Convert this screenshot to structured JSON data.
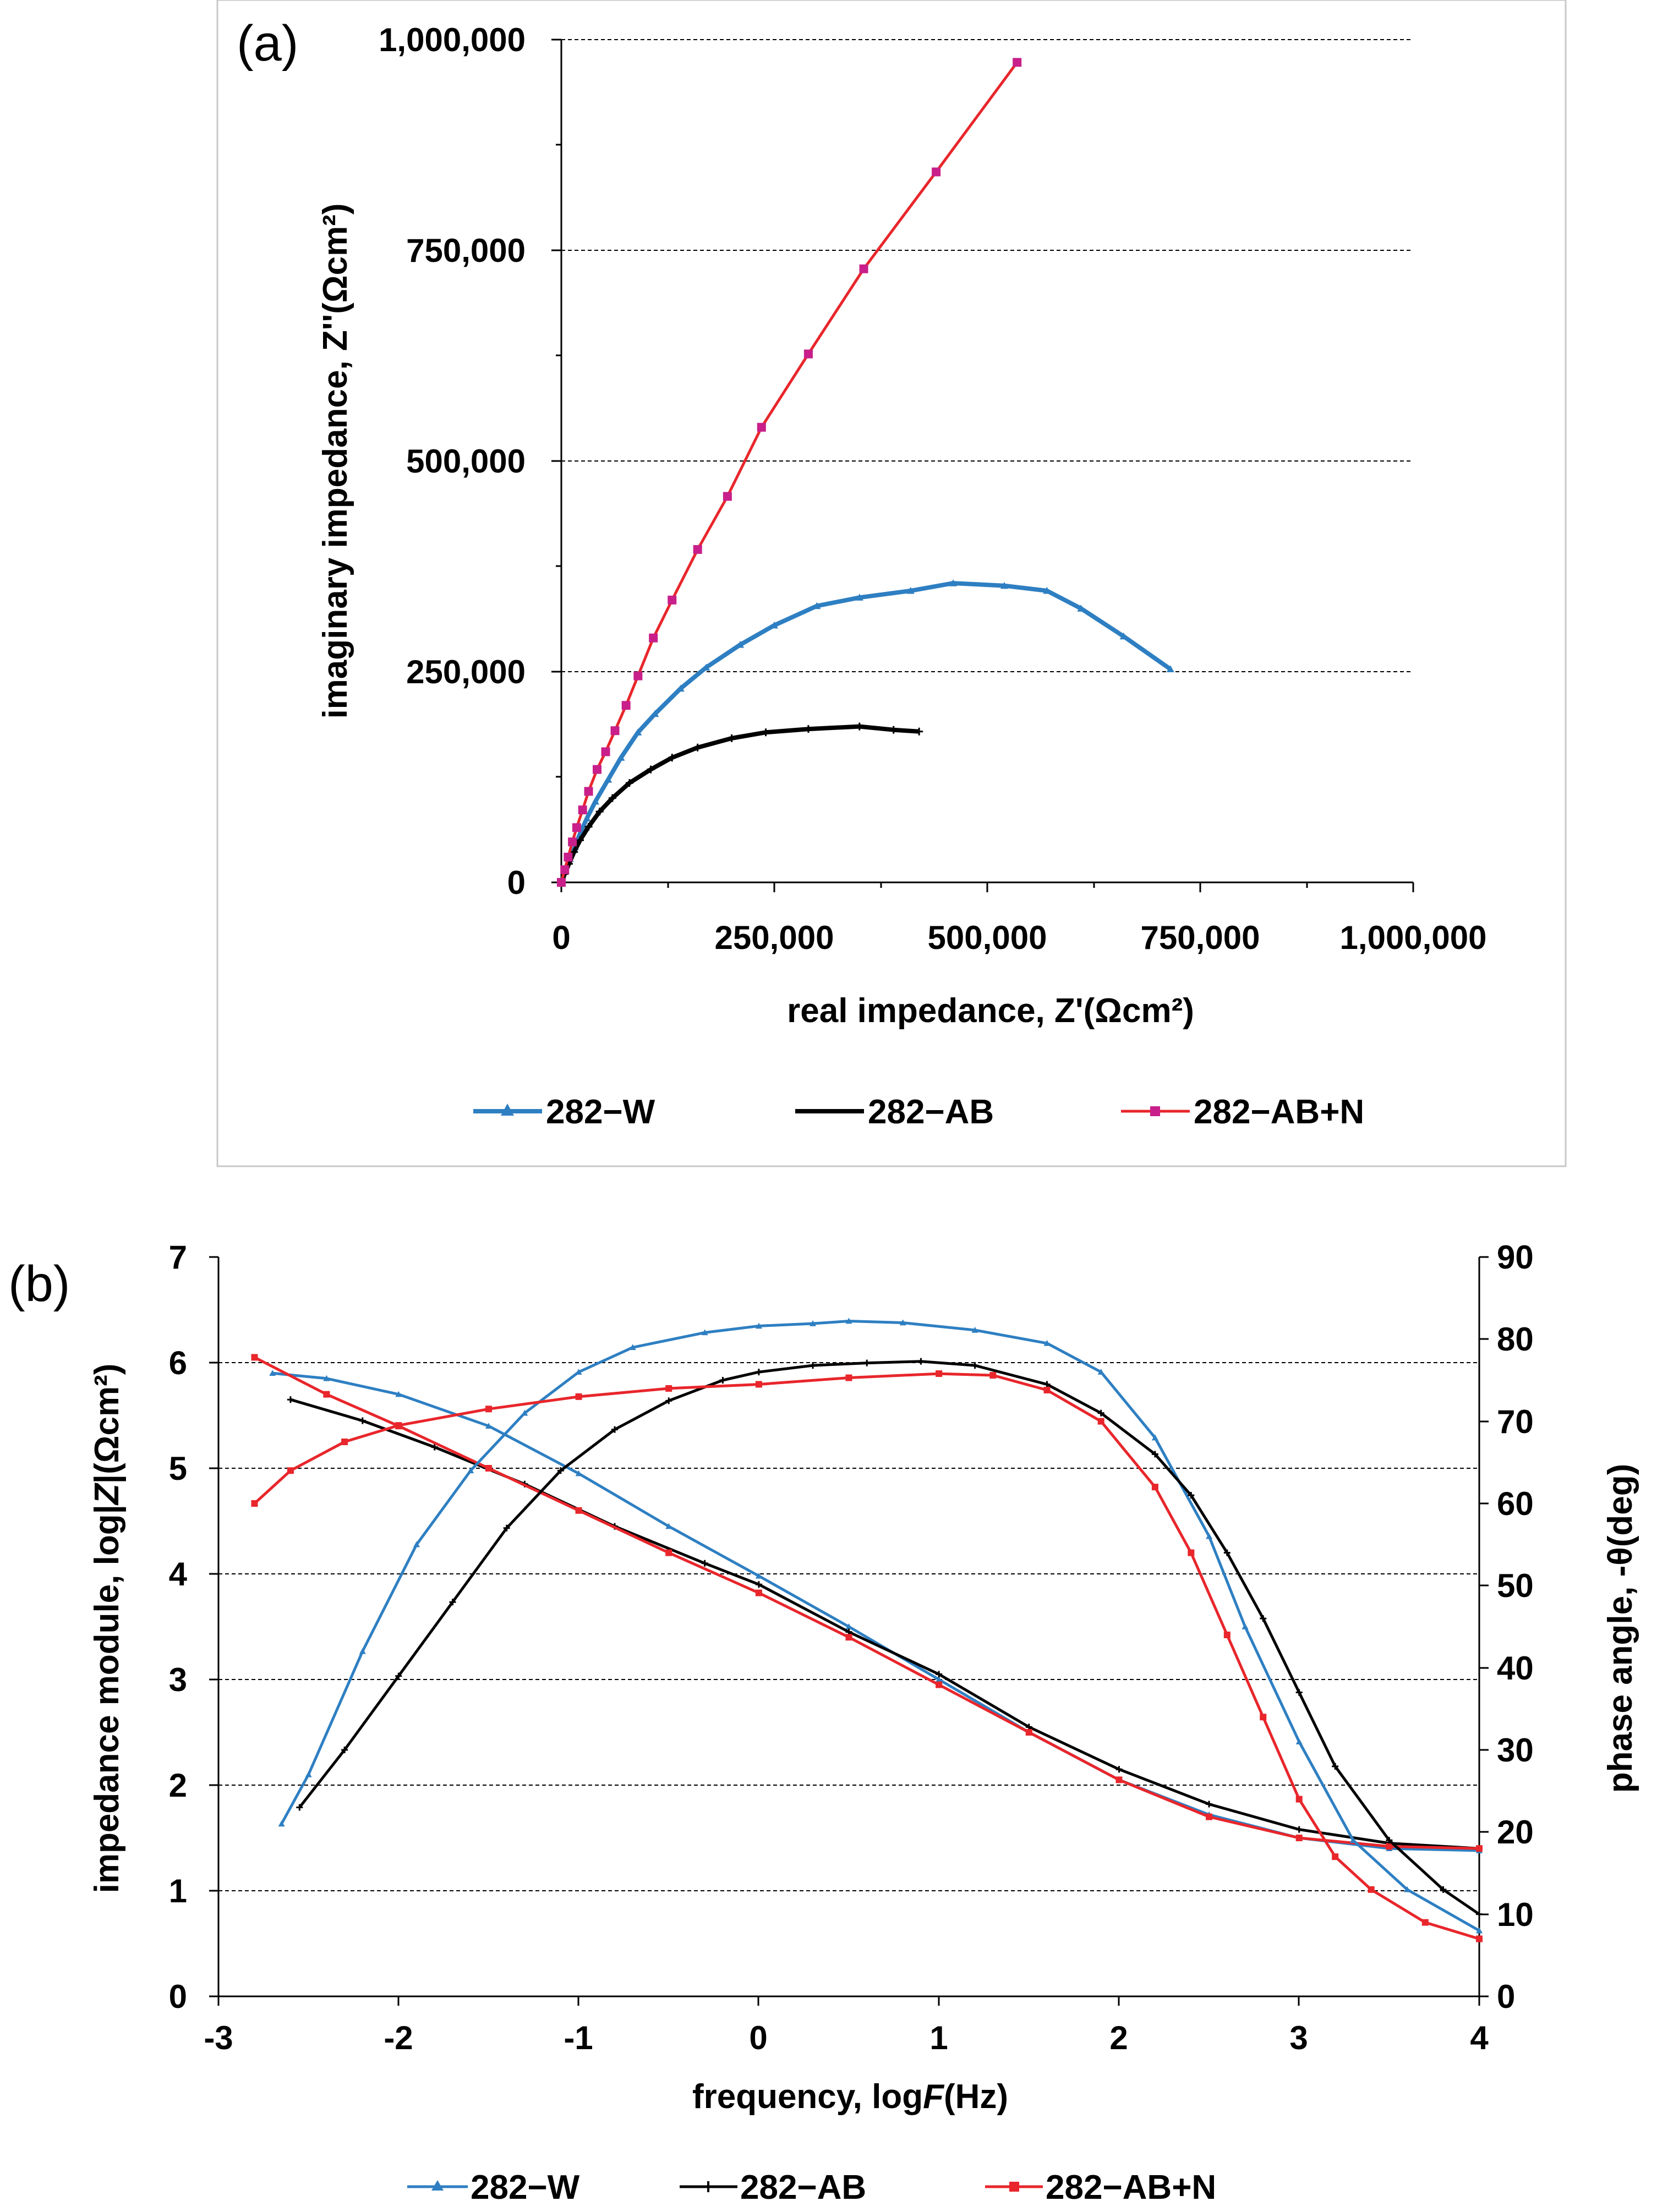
{
  "chart_data": [
    {
      "panel_label": "(a)",
      "type": "scatter",
      "xlabel": "real impedance, Z'(Ωcm²)",
      "ylabel": "imaginary impedance, Z''(Ωcm²)",
      "xlim": [
        0,
        1000000
      ],
      "ylim": [
        0,
        1000000
      ],
      "x_ticks": [
        0,
        250000,
        500000,
        750000,
        1000000
      ],
      "y_ticks": [
        0,
        250000,
        500000,
        750000,
        1000000
      ],
      "x_tick_labels": [
        "0",
        "250,000",
        "500,000",
        "750,000",
        "1,000,000"
      ],
      "y_tick_labels": [
        "0",
        "250,000",
        "500,000",
        "750,000",
        "1,000,000"
      ],
      "grid": "horizontal dashed",
      "legend_position": "bottom",
      "series": [
        {
          "name": "282−W",
          "color": "#2e7fc2",
          "marker": "triangle",
          "points": [
            [
              0,
              0
            ],
            [
              5000,
              14000
            ],
            [
              10000,
              28000
            ],
            [
              16000,
              42000
            ],
            [
              22000,
              58000
            ],
            [
              30000,
              76000
            ],
            [
              40000,
              96000
            ],
            [
              55000,
              122000
            ],
            [
              70000,
              148000
            ],
            [
              90000,
              178000
            ],
            [
              110000,
              200000
            ],
            [
              140000,
              230000
            ],
            [
              170000,
              255000
            ],
            [
              210000,
              282000
            ],
            [
              250000,
              305000
            ],
            [
              300000,
              328000
            ],
            [
              350000,
              338000
            ],
            [
              410000,
              346000
            ],
            [
              460000,
              355000
            ],
            [
              520000,
              352000
            ],
            [
              570000,
              346000
            ],
            [
              610000,
              325000
            ],
            [
              660000,
              292000
            ],
            [
              715000,
              253000
            ]
          ]
        },
        {
          "name": "282−AB",
          "color": "#000000",
          "marker": "plus",
          "points": [
            [
              0,
              0
            ],
            [
              4000,
              10000
            ],
            [
              9000,
              22000
            ],
            [
              15000,
              36000
            ],
            [
              22000,
              50000
            ],
            [
              32000,
              66000
            ],
            [
              45000,
              84000
            ],
            [
              60000,
              100000
            ],
            [
              80000,
              118000
            ],
            [
              105000,
              134000
            ],
            [
              130000,
              148000
            ],
            [
              160000,
              160000
            ],
            [
              200000,
              171000
            ],
            [
              240000,
              178000
            ],
            [
              290000,
              182000
            ],
            [
              350000,
              185000
            ],
            [
              390000,
              181000
            ],
            [
              420000,
              179000
            ]
          ]
        },
        {
          "name": "282−AB+N",
          "color": "#e8262b",
          "marker": "square",
          "marker_color": "#c81f8a",
          "points": [
            [
              0,
              0
            ],
            [
              4000,
              15000
            ],
            [
              8000,
              30000
            ],
            [
              13000,
              48000
            ],
            [
              18000,
              65000
            ],
            [
              25000,
              86000
            ],
            [
              32000,
              108000
            ],
            [
              42000,
              134000
            ],
            [
              52000,
              155000
            ],
            [
              63000,
              180000
            ],
            [
              76000,
              210000
            ],
            [
              90000,
              245000
            ],
            [
              108000,
              290000
            ],
            [
              130000,
              335000
            ],
            [
              160000,
              395000
            ],
            [
              195000,
              458000
            ],
            [
              235000,
              540000
            ],
            [
              290000,
              627000
            ],
            [
              355000,
              728000
            ],
            [
              440000,
              843000
            ],
            [
              535000,
              973000
            ]
          ]
        }
      ],
      "legend": [
        "282−W",
        "282−AB",
        "282−AB+N"
      ]
    },
    {
      "panel_label": "(b)",
      "type": "line",
      "xlabel_prefix": "frequency, log",
      "xlabel_italic": "F",
      "xlabel_suffix": "(Hz)",
      "ylabel_prefix": "impedance module, log|",
      "ylabel_italic": "Z",
      "ylabel_suffix": "|(Ωcm²)",
      "y2label": "phase angle, -θ(deg)",
      "xlim": [
        -3,
        4
      ],
      "ylim": [
        0,
        7
      ],
      "y2lim": [
        0,
        90
      ],
      "x_ticks": [
        -3,
        -2,
        -1,
        0,
        1,
        2,
        3,
        4
      ],
      "y_ticks": [
        0,
        1,
        2,
        3,
        4,
        5,
        6,
        7
      ],
      "y2_ticks": [
        0,
        10,
        20,
        30,
        40,
        50,
        60,
        70,
        80,
        90
      ],
      "grid": "horizontal dashed",
      "legend_position": "bottom",
      "modulus_series": [
        {
          "name": "282−W",
          "color": "#2e7fc2",
          "marker": "triangle",
          "points": [
            [
              -2.7,
              5.9
            ],
            [
              -2.4,
              5.85
            ],
            [
              -2.0,
              5.7
            ],
            [
              -1.5,
              5.4
            ],
            [
              -1.0,
              4.95
            ],
            [
              -0.5,
              4.45
            ],
            [
              0,
              3.98
            ],
            [
              0.5,
              3.5
            ],
            [
              1.0,
              3.0
            ],
            [
              1.5,
              2.5
            ],
            [
              2.0,
              2.05
            ],
            [
              2.5,
              1.72
            ],
            [
              3.0,
              1.5
            ],
            [
              3.5,
              1.4
            ],
            [
              4.0,
              1.38
            ]
          ]
        },
        {
          "name": "282−AB",
          "color": "#000000",
          "marker": "plus",
          "points": [
            [
              -2.6,
              5.65
            ],
            [
              -2.2,
              5.45
            ],
            [
              -1.8,
              5.2
            ],
            [
              -1.3,
              4.85
            ],
            [
              -0.8,
              4.45
            ],
            [
              -0.3,
              4.1
            ],
            [
              0,
              3.9
            ],
            [
              0.5,
              3.45
            ],
            [
              1.0,
              3.05
            ],
            [
              1.5,
              2.55
            ],
            [
              2.0,
              2.15
            ],
            [
              2.5,
              1.82
            ],
            [
              3.0,
              1.58
            ],
            [
              3.5,
              1.45
            ],
            [
              4.0,
              1.4
            ]
          ]
        },
        {
          "name": "282−AB+N",
          "color": "#e8262b",
          "marker": "square",
          "points": [
            [
              -2.8,
              6.05
            ],
            [
              -2.4,
              5.7
            ],
            [
              -2.0,
              5.4
            ],
            [
              -1.5,
              5.0
            ],
            [
              -1.0,
              4.6
            ],
            [
              -0.5,
              4.2
            ],
            [
              0,
              3.82
            ],
            [
              0.5,
              3.4
            ],
            [
              1.0,
              2.95
            ],
            [
              1.5,
              2.5
            ],
            [
              2.0,
              2.05
            ],
            [
              2.5,
              1.7
            ],
            [
              3.0,
              1.5
            ],
            [
              3.5,
              1.42
            ],
            [
              4.0,
              1.4
            ]
          ]
        }
      ],
      "phase_series": [
        {
          "name": "282−W",
          "color": "#2e7fc2",
          "marker": "triangle",
          "points": [
            [
              -2.65,
              21
            ],
            [
              -2.5,
              27
            ],
            [
              -2.2,
              42
            ],
            [
              -1.9,
              55
            ],
            [
              -1.6,
              64
            ],
            [
              -1.3,
              71
            ],
            [
              -1.0,
              76
            ],
            [
              -0.7,
              79
            ],
            [
              -0.3,
              80.8
            ],
            [
              0,
              81.6
            ],
            [
              0.3,
              81.9
            ],
            [
              0.5,
              82.2
            ],
            [
              0.8,
              82
            ],
            [
              1.2,
              81.1
            ],
            [
              1.6,
              79.5
            ],
            [
              1.9,
              76
            ],
            [
              2.2,
              68
            ],
            [
              2.5,
              56
            ],
            [
              2.7,
              45
            ],
            [
              3.0,
              31
            ],
            [
              3.3,
              19
            ],
            [
              3.6,
              13
            ],
            [
              4.0,
              8
            ]
          ]
        },
        {
          "name": "282−AB",
          "color": "#000000",
          "marker": "plus",
          "points": [
            [
              -2.55,
              23
            ],
            [
              -2.3,
              30
            ],
            [
              -2.0,
              39
            ],
            [
              -1.7,
              48
            ],
            [
              -1.4,
              57
            ],
            [
              -1.1,
              64
            ],
            [
              -0.8,
              69
            ],
            [
              -0.5,
              72.5
            ],
            [
              -0.2,
              75
            ],
            [
              0,
              76
            ],
            [
              0.3,
              76.8
            ],
            [
              0.6,
              77.1
            ],
            [
              0.9,
              77.3
            ],
            [
              1.2,
              76.8
            ],
            [
              1.6,
              74.5
            ],
            [
              1.9,
              71
            ],
            [
              2.2,
              66
            ],
            [
              2.4,
              61
            ],
            [
              2.6,
              54
            ],
            [
              2.8,
              46
            ],
            [
              3.0,
              37
            ],
            [
              3.2,
              28
            ],
            [
              3.5,
              19
            ],
            [
              3.8,
              13
            ],
            [
              4.0,
              10
            ]
          ]
        },
        {
          "name": "282−AB+N",
          "color": "#e8262b",
          "marker": "square",
          "points": [
            [
              -2.8,
              60
            ],
            [
              -2.6,
              64
            ],
            [
              -2.3,
              67.5
            ],
            [
              -2.0,
              69.5
            ],
            [
              -1.5,
              71.5
            ],
            [
              -1.0,
              73
            ],
            [
              -0.5,
              74
            ],
            [
              0,
              74.5
            ],
            [
              0.5,
              75.3
            ],
            [
              1.0,
              75.8
            ],
            [
              1.3,
              75.6
            ],
            [
              1.6,
              73.8
            ],
            [
              1.9,
              70
            ],
            [
              2.2,
              62
            ],
            [
              2.4,
              54
            ],
            [
              2.6,
              44
            ],
            [
              2.8,
              34
            ],
            [
              3.0,
              24
            ],
            [
              3.2,
              17
            ],
            [
              3.4,
              13
            ],
            [
              3.7,
              9
            ],
            [
              4.0,
              7
            ]
          ]
        }
      ],
      "legend": [
        "282−W",
        "282−AB",
        "282−AB+N"
      ]
    }
  ]
}
